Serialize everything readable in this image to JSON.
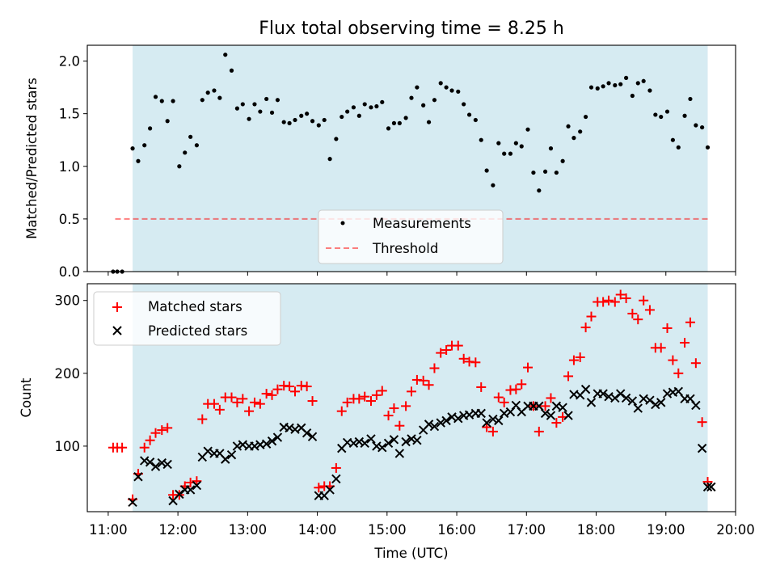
{
  "chart_data": [
    {
      "type": "scatter",
      "title": "Flux total observing time = 8.25 h",
      "xlabel": "",
      "ylabel": "Matched/Predicted stars",
      "xlim": [
        10.7,
        20.0
      ],
      "ylim": [
        0,
        2.15
      ],
      "yticks": [
        0.0,
        0.5,
        1.0,
        1.5,
        2.0
      ],
      "ytick_labels": [
        "0.0",
        "0.5",
        "1.0",
        "1.5",
        "2.0"
      ],
      "shaded_span": [
        11.35,
        19.6
      ],
      "shade_color": "#add8e6",
      "measurement_color": "#000000",
      "threshold_color": "#ff0000",
      "threshold": {
        "value": 0.5,
        "x_range": [
          11.1,
          19.6
        ]
      },
      "legend": {
        "position": "lower-center",
        "entries": [
          "Measurements",
          "Threshold"
        ]
      },
      "series": [
        {
          "name": "Measurements",
          "x": [
            11.07,
            11.13,
            11.2,
            11.35,
            11.43,
            11.52,
            11.6,
            11.68,
            11.77,
            11.85,
            11.93,
            12.02,
            12.1,
            12.18,
            12.27,
            12.35,
            12.43,
            12.52,
            12.6,
            12.68,
            12.77,
            12.85,
            12.93,
            13.02,
            13.1,
            13.18,
            13.27,
            13.35,
            13.43,
            13.52,
            13.6,
            13.68,
            13.77,
            13.85,
            13.93,
            14.02,
            14.1,
            14.18,
            14.27,
            14.35,
            14.43,
            14.52,
            14.6,
            14.68,
            14.77,
            14.85,
            14.93,
            15.02,
            15.1,
            15.18,
            15.27,
            15.35,
            15.43,
            15.52,
            15.6,
            15.68,
            15.77,
            15.85,
            15.93,
            16.02,
            16.1,
            16.18,
            16.27,
            16.35,
            16.43,
            16.52,
            16.6,
            16.68,
            16.77,
            16.85,
            16.93,
            17.02,
            17.1,
            17.18,
            17.27,
            17.35,
            17.43,
            17.52,
            17.6,
            17.68,
            17.77,
            17.85,
            17.93,
            18.02,
            18.1,
            18.18,
            18.27,
            18.35,
            18.43,
            18.52,
            18.6,
            18.68,
            18.77,
            18.85,
            18.93,
            19.02,
            19.1,
            19.18,
            19.27,
            19.35,
            19.43,
            19.52,
            19.6
          ],
          "y": [
            0.0,
            0.0,
            0.0,
            1.17,
            1.05,
            1.2,
            1.36,
            1.66,
            1.62,
            1.43,
            1.62,
            1.0,
            1.13,
            1.28,
            1.2,
            1.63,
            1.7,
            1.72,
            1.65,
            2.06,
            1.91,
            1.55,
            1.59,
            1.45,
            1.59,
            1.52,
            1.64,
            1.51,
            1.63,
            1.42,
            1.41,
            1.44,
            1.48,
            1.5,
            1.43,
            1.39,
            1.44,
            1.07,
            1.26,
            1.47,
            1.52,
            1.56,
            1.48,
            1.59,
            1.56,
            1.57,
            1.61,
            1.36,
            1.41,
            1.41,
            1.46,
            1.65,
            1.75,
            1.58,
            1.42,
            1.63,
            1.79,
            1.75,
            1.72,
            1.71,
            1.59,
            1.49,
            1.44,
            1.25,
            0.96,
            0.82,
            1.22,
            1.12,
            1.12,
            1.22,
            1.19,
            1.35,
            0.94,
            0.77,
            0.95,
            1.17,
            0.94,
            1.05,
            1.38,
            1.27,
            1.33,
            1.47,
            1.75,
            1.74,
            1.76,
            1.79,
            1.77,
            1.78,
            1.84,
            1.67,
            1.79,
            1.81,
            1.72,
            1.49,
            1.47,
            1.52,
            1.25,
            1.18,
            1.48,
            1.64,
            1.39,
            1.37,
            1.18
          ]
        }
      ]
    },
    {
      "type": "scatter",
      "title": "",
      "xlabel": "Time (UTC)",
      "ylabel": "Count",
      "xlim": [
        10.7,
        20.0
      ],
      "ylim": [
        10,
        323
      ],
      "yticks": [
        100,
        200,
        300
      ],
      "ytick_labels": [
        "100",
        "200",
        "300"
      ],
      "xticks": [
        11,
        12,
        13,
        14,
        15,
        16,
        17,
        18,
        19,
        20
      ],
      "xtick_labels": [
        "11:00",
        "12:00",
        "13:00",
        "14:00",
        "15:00",
        "16:00",
        "17:00",
        "18:00",
        "19:00",
        "20:00"
      ],
      "shaded_span": [
        11.35,
        19.6
      ],
      "shade_color": "#add8e6",
      "legend": {
        "position": "upper-left",
        "entries": [
          "Matched stars",
          "Predicted stars"
        ]
      },
      "series": [
        {
          "name": "Matched stars",
          "marker": "plus",
          "color": "#ff0000",
          "x": [
            11.07,
            11.13,
            11.2,
            11.35,
            11.43,
            11.52,
            11.6,
            11.68,
            11.77,
            11.85,
            11.93,
            12.02,
            12.1,
            12.18,
            12.27,
            12.35,
            12.43,
            12.52,
            12.6,
            12.68,
            12.77,
            12.85,
            12.93,
            13.02,
            13.1,
            13.18,
            13.27,
            13.35,
            13.43,
            13.52,
            13.6,
            13.68,
            13.77,
            13.85,
            13.93,
            14.02,
            14.1,
            14.18,
            14.27,
            14.35,
            14.43,
            14.52,
            14.6,
            14.68,
            14.77,
            14.85,
            14.93,
            15.02,
            15.1,
            15.18,
            15.27,
            15.35,
            15.43,
            15.52,
            15.6,
            15.68,
            15.77,
            15.85,
            15.93,
            16.02,
            16.1,
            16.18,
            16.27,
            16.35,
            16.43,
            16.52,
            16.6,
            16.68,
            16.77,
            16.85,
            16.93,
            17.02,
            17.1,
            17.18,
            17.27,
            17.35,
            17.43,
            17.52,
            17.6,
            17.68,
            17.77,
            17.85,
            17.93,
            18.02,
            18.1,
            18.18,
            18.27,
            18.35,
            18.43,
            18.52,
            18.6,
            18.68,
            18.77,
            18.85,
            18.93,
            19.02,
            19.1,
            19.18,
            19.27,
            19.35,
            19.43,
            19.52,
            19.6
          ],
          "y": [
            98,
            98,
            98,
            27,
            62,
            98,
            108,
            118,
            122,
            125,
            33,
            33,
            45,
            50,
            52,
            137,
            158,
            158,
            150,
            167,
            167,
            160,
            165,
            148,
            160,
            158,
            172,
            170,
            178,
            183,
            182,
            175,
            183,
            182,
            162,
            43,
            45,
            45,
            70,
            148,
            160,
            165,
            165,
            168,
            162,
            170,
            176,
            142,
            152,
            128,
            155,
            175,
            191,
            190,
            184,
            207,
            228,
            232,
            238,
            238,
            220,
            216,
            215,
            181,
            126,
            120,
            167,
            160,
            177,
            178,
            185,
            208,
            155,
            120,
            155,
            166,
            132,
            140,
            196,
            218,
            222,
            263,
            278,
            298,
            298,
            300,
            298,
            308,
            303,
            282,
            274,
            300,
            287,
            235,
            235,
            262,
            218,
            200,
            242,
            270,
            214,
            133,
            51
          ]
        },
        {
          "name": "Predicted stars",
          "marker": "x",
          "color": "#000000",
          "x": [
            11.35,
            11.43,
            11.52,
            11.6,
            11.68,
            11.77,
            11.85,
            11.93,
            12.02,
            12.1,
            12.18,
            12.27,
            12.35,
            12.43,
            12.52,
            12.6,
            12.68,
            12.77,
            12.85,
            12.93,
            13.02,
            13.1,
            13.18,
            13.27,
            13.35,
            13.43,
            13.52,
            13.6,
            13.68,
            13.77,
            13.85,
            13.93,
            14.02,
            14.1,
            14.18,
            14.27,
            14.35,
            14.43,
            14.52,
            14.6,
            14.68,
            14.77,
            14.85,
            14.93,
            15.02,
            15.1,
            15.18,
            15.27,
            15.35,
            15.43,
            15.52,
            15.6,
            15.68,
            15.77,
            15.85,
            15.93,
            16.02,
            16.1,
            16.18,
            16.27,
            16.35,
            16.43,
            16.52,
            16.6,
            16.68,
            16.77,
            16.85,
            16.93,
            17.02,
            17.1,
            17.18,
            17.27,
            17.35,
            17.43,
            17.52,
            17.6,
            17.68,
            17.77,
            17.85,
            17.93,
            18.02,
            18.1,
            18.18,
            18.27,
            18.35,
            18.43,
            18.52,
            18.6,
            18.68,
            18.77,
            18.85,
            18.93,
            19.02,
            19.1,
            19.18,
            19.27,
            19.35,
            19.43,
            19.52,
            19.6,
            19.65
          ],
          "y": [
            23,
            58,
            80,
            78,
            72,
            77,
            75,
            25,
            34,
            40,
            40,
            46,
            85,
            93,
            90,
            90,
            82,
            88,
            100,
            102,
            100,
            100,
            102,
            103,
            107,
            112,
            126,
            125,
            123,
            125,
            118,
            113,
            32,
            32,
            40,
            55,
            97,
            105,
            104,
            106,
            104,
            110,
            100,
            98,
            104,
            109,
            90,
            106,
            110,
            108,
            122,
            130,
            127,
            132,
            135,
            140,
            138,
            142,
            143,
            145,
            145,
            132,
            137,
            135,
            145,
            147,
            156,
            147,
            155,
            155,
            155,
            145,
            142,
            155,
            153,
            142,
            171,
            170,
            178,
            160,
            172,
            172,
            168,
            166,
            172,
            166,
            162,
            152,
            165,
            163,
            157,
            160,
            172,
            174,
            175,
            165,
            165,
            156,
            97,
            44,
            44
          ]
        }
      ]
    }
  ]
}
